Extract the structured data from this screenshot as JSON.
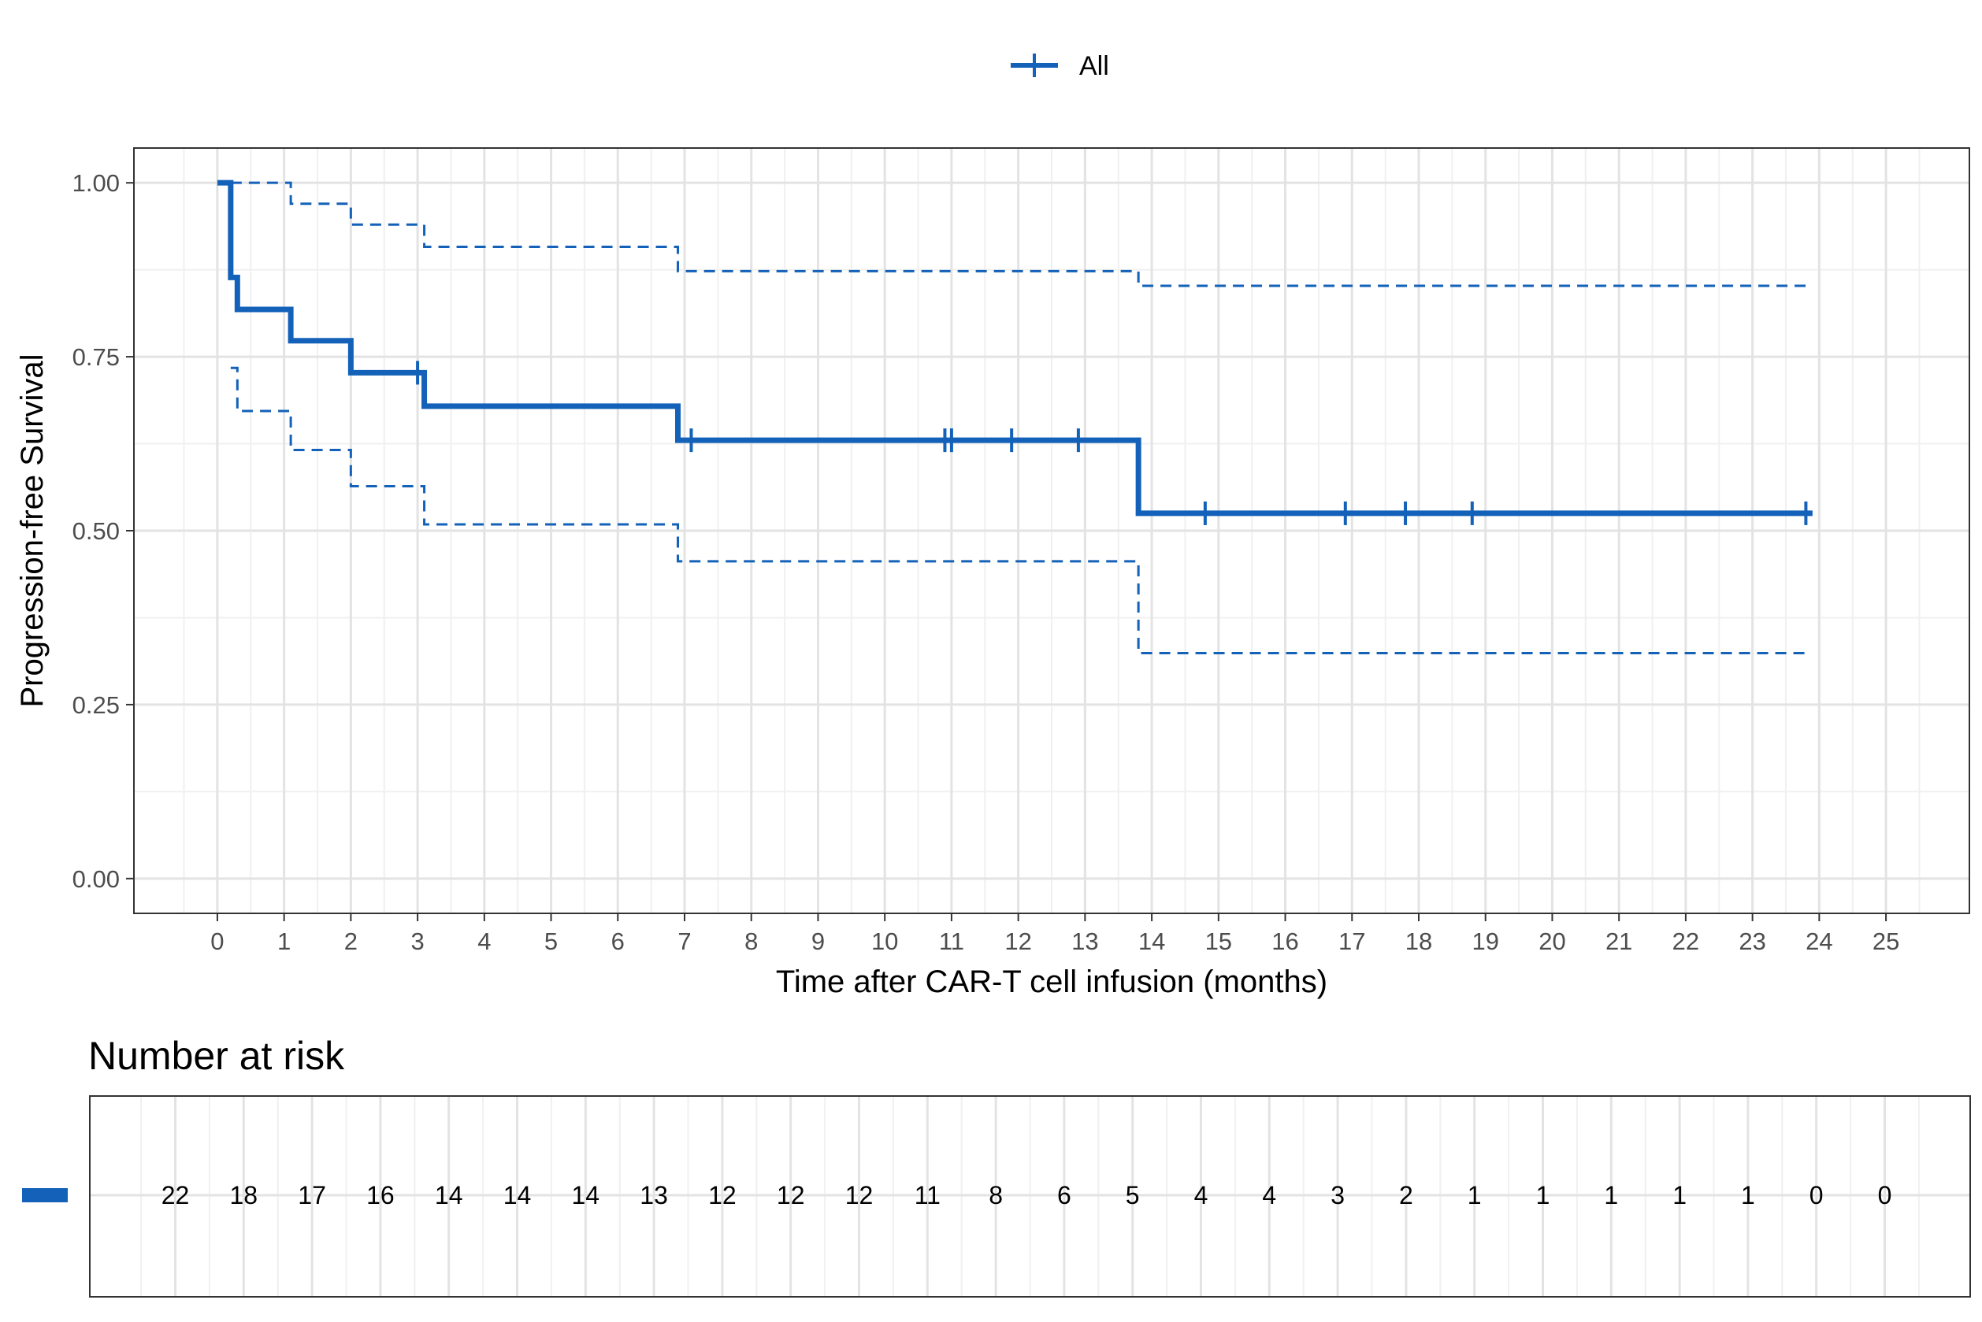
{
  "chart_data": {
    "type": "line",
    "subtype": "kaplan-meier",
    "title": "",
    "xlabel": "Time after CAR-T cell infusion (months)",
    "ylabel": "Progression-free Survival",
    "xlim": [
      -1.25,
      26.25
    ],
    "ylim": [
      -0.05,
      1.05
    ],
    "x_ticks": [
      0,
      1,
      2,
      3,
      4,
      5,
      6,
      7,
      8,
      9,
      10,
      11,
      12,
      13,
      14,
      15,
      16,
      17,
      18,
      19,
      20,
      21,
      22,
      23,
      24,
      25
    ],
    "y_ticks": [
      0,
      0.25,
      0.5,
      0.75,
      1.0
    ],
    "y_tick_labels": [
      "0.00",
      "0.25",
      "0.50",
      "0.75",
      "1.00"
    ],
    "grid": true,
    "legend": {
      "position": "top",
      "entries": [
        "All"
      ]
    },
    "colors": {
      "series": "#1361b8",
      "grid_major": "#e3e3e3",
      "grid_minor": "#f0f0f0",
      "panel_border": "#333333"
    },
    "series": [
      {
        "name": "All",
        "steps": [
          [
            0,
            1.0
          ],
          [
            0.2,
            0.864
          ],
          [
            0.3,
            0.818
          ],
          [
            1.1,
            0.773
          ],
          [
            2.0,
            0.727
          ],
          [
            3.1,
            0.679
          ],
          [
            6.9,
            0.63
          ],
          [
            13.8,
            0.525
          ],
          [
            23.9,
            0.525
          ]
        ],
        "censor_times": [
          3.0,
          7.1,
          10.9,
          11.0,
          11.9,
          12.9,
          14.8,
          16.9,
          17.8,
          18.8,
          23.8
        ],
        "ci_upper": [
          [
            0.2,
            1.0
          ],
          [
            1.1,
            0.97
          ],
          [
            2.0,
            0.94
          ],
          [
            3.1,
            0.908
          ],
          [
            6.9,
            0.873
          ],
          [
            13.8,
            0.852
          ],
          [
            23.8,
            0.852
          ]
        ],
        "ci_lower": [
          [
            0.2,
            0.734
          ],
          [
            0.3,
            0.672
          ],
          [
            1.1,
            0.616
          ],
          [
            2.0,
            0.564
          ],
          [
            3.1,
            0.509
          ],
          [
            6.9,
            0.456
          ],
          [
            13.8,
            0.324
          ],
          [
            23.8,
            0.324
          ]
        ]
      }
    ],
    "risk_table": {
      "title": "Number at risk",
      "times": [
        0,
        1,
        2,
        3,
        4,
        5,
        6,
        7,
        8,
        9,
        10,
        11,
        12,
        13,
        14,
        15,
        16,
        17,
        18,
        19,
        20,
        21,
        22,
        23,
        24,
        25
      ],
      "counts": [
        22,
        18,
        17,
        16,
        14,
        14,
        14,
        13,
        12,
        12,
        12,
        11,
        8,
        6,
        5,
        4,
        4,
        3,
        2,
        1,
        1,
        1,
        1,
        1,
        0,
        0
      ]
    }
  }
}
